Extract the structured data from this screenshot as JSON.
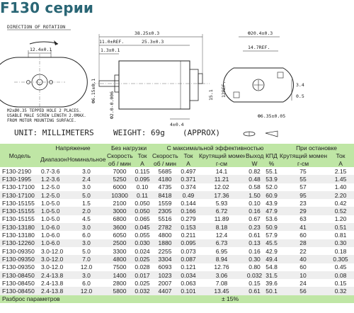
{
  "title": "F130 серии",
  "drawing": {
    "direction_label": "DIRECTION OF ROTATION",
    "dims": {
      "d_12_4": "12.4±0.1",
      "d_38_25": "38.25±0.3",
      "d_11_0": "11.0±REF.",
      "d_25_3": "25.3±0.3",
      "d_1_3": "1.3±0.1",
      "d_20_4": "Ф20.4±0.3",
      "d_14_7": "14.7REF.",
      "d_6_15": "Ф6.15±0.1",
      "d_2_0": "Ф2.0-0.006",
      "d_4_0": "4±0.4",
      "d_15_1": "15.1",
      "d_3_4": "3.4",
      "d_0_5": "0.5",
      "d_6_35": "Ф6.35±0.05",
      "d_12_ref": "12REF."
    },
    "notes": [
      "M2xØ0.35 TEPPED HOLE 2 PLACES.",
      "USABLE MALE SCREW LENGTH 2.0MAX.",
      "FROM MOTOR MOUNTING SURFACE."
    ]
  },
  "units_text": "UNIT: MILLIMETERS",
  "weight_text": "WEIGHT: 69g",
  "approx_text": "(APPROX)",
  "table": {
    "group_headers": {
      "model": "Модель",
      "voltage": "Напряжение",
      "no_load": "Без нагрузки",
      "max_eff": "С максимальной эффективностью",
      "stall": "При остановке"
    },
    "sub_headers": {
      "range": "Диапазон",
      "nominal": "Номинальное",
      "speed": "Скорость",
      "current": "Ток",
      "speed2": "Скорость",
      "current2": "Ток",
      "torque": "Крутящий момент",
      "output": "Выход",
      "eff": "КПД",
      "stall_torque": "Крутящий момент",
      "stall_current": "Ток"
    },
    "units": {
      "speed": "об / мин",
      "current": "A",
      "speed2": "об / мин",
      "current2": "A",
      "torque": "г-см",
      "output": "W",
      "eff": "%",
      "stall_torque": "г-см",
      "stall_current": "A"
    },
    "rows": [
      [
        "F130-2190",
        "0.7-3.6",
        "3.0",
        "7000",
        "0.115",
        "5685",
        "0.497",
        "14.1",
        "0.82",
        "55.1",
        "75",
        "2.15"
      ],
      [
        "F130-1995",
        "1.2-3.6",
        "2.4",
        "5250",
        "0.095",
        "4180",
        "0.371",
        "11.21",
        "0.48",
        "53.9",
        "55",
        "1.45"
      ],
      [
        "F130-17100",
        "1.2-5.0",
        "3.0",
        "6000",
        "0.10",
        "4735",
        "0.374",
        "12.02",
        "0.58",
        "52.0",
        "57",
        "1.40"
      ],
      [
        "F130-17100",
        "1.2-5.0",
        "5.0",
        "10300",
        "0.11",
        "8418",
        "0.49",
        "17.36",
        "1.50",
        "60.9",
        "95",
        "2.20"
      ],
      [
        "F130-15155",
        "1.0-5.0",
        "1.5",
        "2100",
        "0.050",
        "1559",
        "0.144",
        "5.93",
        "0.10",
        "43.9",
        "23",
        "0.42"
      ],
      [
        "F130-15155",
        "1.0-5.0",
        "2.0",
        "3000",
        "0.050",
        "2305",
        "0.166",
        "6.72",
        "0.16",
        "47.9",
        "29",
        "0.52"
      ],
      [
        "F130-15155",
        "1.0-5.0",
        "4.5",
        "6800",
        "0.065",
        "5516",
        "0.279",
        "11.89",
        "0.67",
        "53.6",
        "63",
        "1.20"
      ],
      [
        "F130-13180",
        "1.0-6.0",
        "3.0",
        "3600",
        "0.045",
        "2782",
        "0.153",
        "8.18",
        "0.23",
        "50.9",
        "41",
        "0.51"
      ],
      [
        "F130-13180",
        "1.0-6.0",
        "6.0",
        "6050",
        "0.055",
        "4800",
        "0.211",
        "12.4",
        "0.61",
        "57.9",
        "60",
        "0.81"
      ],
      [
        "F130-12260",
        "1.0-6.0",
        "3.0",
        "2500",
        "0.030",
        "1880",
        "0.095",
        "6.73",
        "0.13",
        "45.5",
        "28",
        "0.30"
      ],
      [
        "F130-09350",
        "3.0-12.0",
        "5.0",
        "3300",
        "0.024",
        "2255",
        "0.073",
        "6.95",
        "0.16",
        "42.9",
        "22",
        "0.18"
      ],
      [
        "F130-09350",
        "3.0-12.0",
        "7.0",
        "4800",
        "0.025",
        "3304",
        "0.087",
        "8.94",
        "0.30",
        "49.4",
        "40",
        "0.305"
      ],
      [
        "F130-09350",
        "3.0-12.0",
        "12.0",
        "7500",
        "0.028",
        "6093",
        "0.121",
        "12.76",
        "0.80",
        "54.8",
        "60",
        "0.45"
      ],
      [
        "F130-08450",
        "2.4-13.8",
        "3.0",
        "1400",
        "0.017",
        "1023",
        "0.034",
        "3.06",
        "0.032",
        "31.5",
        "10",
        "0.08"
      ],
      [
        "F130-08450",
        "2.4-13.8",
        "6.0",
        "2800",
        "0.025",
        "2007",
        "0.063",
        "7.08",
        "0.15",
        "39.6",
        "24",
        "0.15"
      ],
      [
        "F130-08450",
        "2.4-13.8",
        "12.0",
        "5800",
        "0.032",
        "4407",
        "0.101",
        "13.45",
        "0.61",
        "50.1",
        "56",
        "0.32"
      ]
    ],
    "footer_label": "Разброс параметров",
    "footer_value": "± 15%"
  }
}
